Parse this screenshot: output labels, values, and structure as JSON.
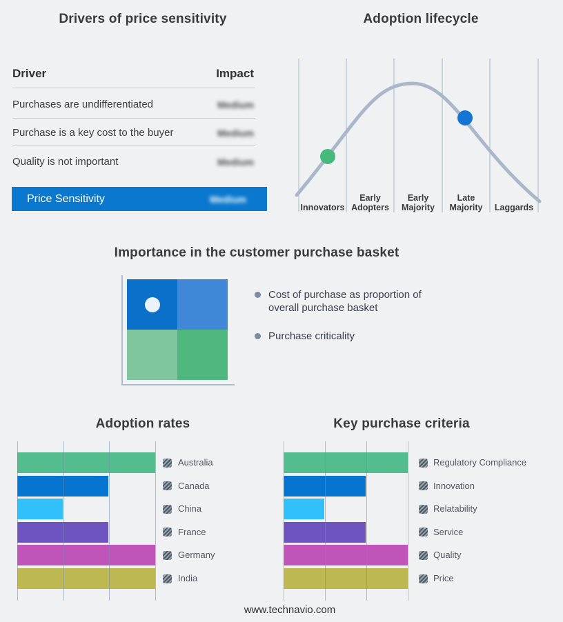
{
  "page": {
    "footer_url": "www.technavio.com"
  },
  "colors": {
    "page_bg": "#f0f1f3",
    "band_bg": "#d2dde7",
    "highlight_blue": "#0a78ce",
    "curve": "#aab7cb",
    "lifecycle_gridline": "#a7b5c9",
    "bar_gridline": "#7a90ad",
    "legend_swatch_dark": "#4e5a68",
    "legend_swatch_light": "#9aa2ac"
  },
  "drivers_panel": {
    "title": "Drivers of price sensitivity",
    "columns": {
      "driver": "Driver",
      "impact": "Impact"
    },
    "rows": [
      {
        "driver": "Purchases are undifferentiated",
        "impact": "Medium",
        "impact_blurred": true
      },
      {
        "driver": "Purchase is a key cost to the buyer",
        "impact": "Medium",
        "impact_blurred": true
      },
      {
        "driver": "Quality is not important",
        "impact": "Medium",
        "impact_blurred": true
      }
    ],
    "summary_row": {
      "label": "Price Sensitivity",
      "impact": "Medium",
      "impact_blurred": true
    }
  },
  "basket_panel": {
    "title": "Importance in the customer purchase basket",
    "bullets": [
      "Cost of purchase as proportion of overall purchase basket",
      "Purchase criticality"
    ],
    "quadrant": {
      "top_left": "#0b70ca",
      "top_right": "#4187d8",
      "bottom_left": "#80c59e",
      "bottom_right": "#50b87f",
      "marker": {
        "position": "top_left",
        "color": "#ebf3fa"
      }
    }
  },
  "chart_data": [
    {
      "id": "adoption_lifecycle",
      "type": "line",
      "title": "Adoption lifecycle",
      "x_categories": [
        "Innovators",
        "Early Adopters",
        "Early Majority",
        "Late Majority",
        "Laggards"
      ],
      "curve_shape": "bell-shaped adoption curve peaking over Early Majority",
      "curve_color": "#aab7cb",
      "grid": true,
      "markers": [
        {
          "stage": "Innovators",
          "position_on_curve": "rising slope",
          "color": "#46b97d"
        },
        {
          "stage": "Late Majority",
          "position_on_curve": "falling slope",
          "color": "#1476d2"
        }
      ]
    },
    {
      "id": "adoption_rates",
      "type": "bar",
      "title": "Adoption rates",
      "orientation": "horizontal",
      "categories": [
        "Australia",
        "Canada",
        "China",
        "France",
        "Germany",
        "India"
      ],
      "values": [
        100,
        66,
        33,
        66,
        100,
        100
      ],
      "value_note": "relative bar lengths in % of axis span; no numeric labels shown",
      "colors": [
        "#54bd8d",
        "#0575d0",
        "#32c0fa",
        "#6d54be",
        "#c054b9",
        "#bdb852"
      ],
      "xlim": [
        0,
        100
      ],
      "grid": true,
      "legend_position": "right"
    },
    {
      "id": "key_purchase_criteria",
      "type": "bar",
      "title": "Key purchase criteria",
      "orientation": "horizontal",
      "categories": [
        "Regulatory Compliance",
        "Innovation",
        "Relatability",
        "Service",
        "Quality",
        "Price"
      ],
      "values": [
        100,
        66,
        33,
        66,
        100,
        100
      ],
      "value_note": "relative bar lengths in % of axis span; no numeric labels shown",
      "colors": [
        "#54bd8d",
        "#0575d0",
        "#32c0fa",
        "#6d54be",
        "#c054b9",
        "#bdb852"
      ],
      "xlim": [
        0,
        100
      ],
      "grid": true,
      "legend_position": "right"
    }
  ]
}
